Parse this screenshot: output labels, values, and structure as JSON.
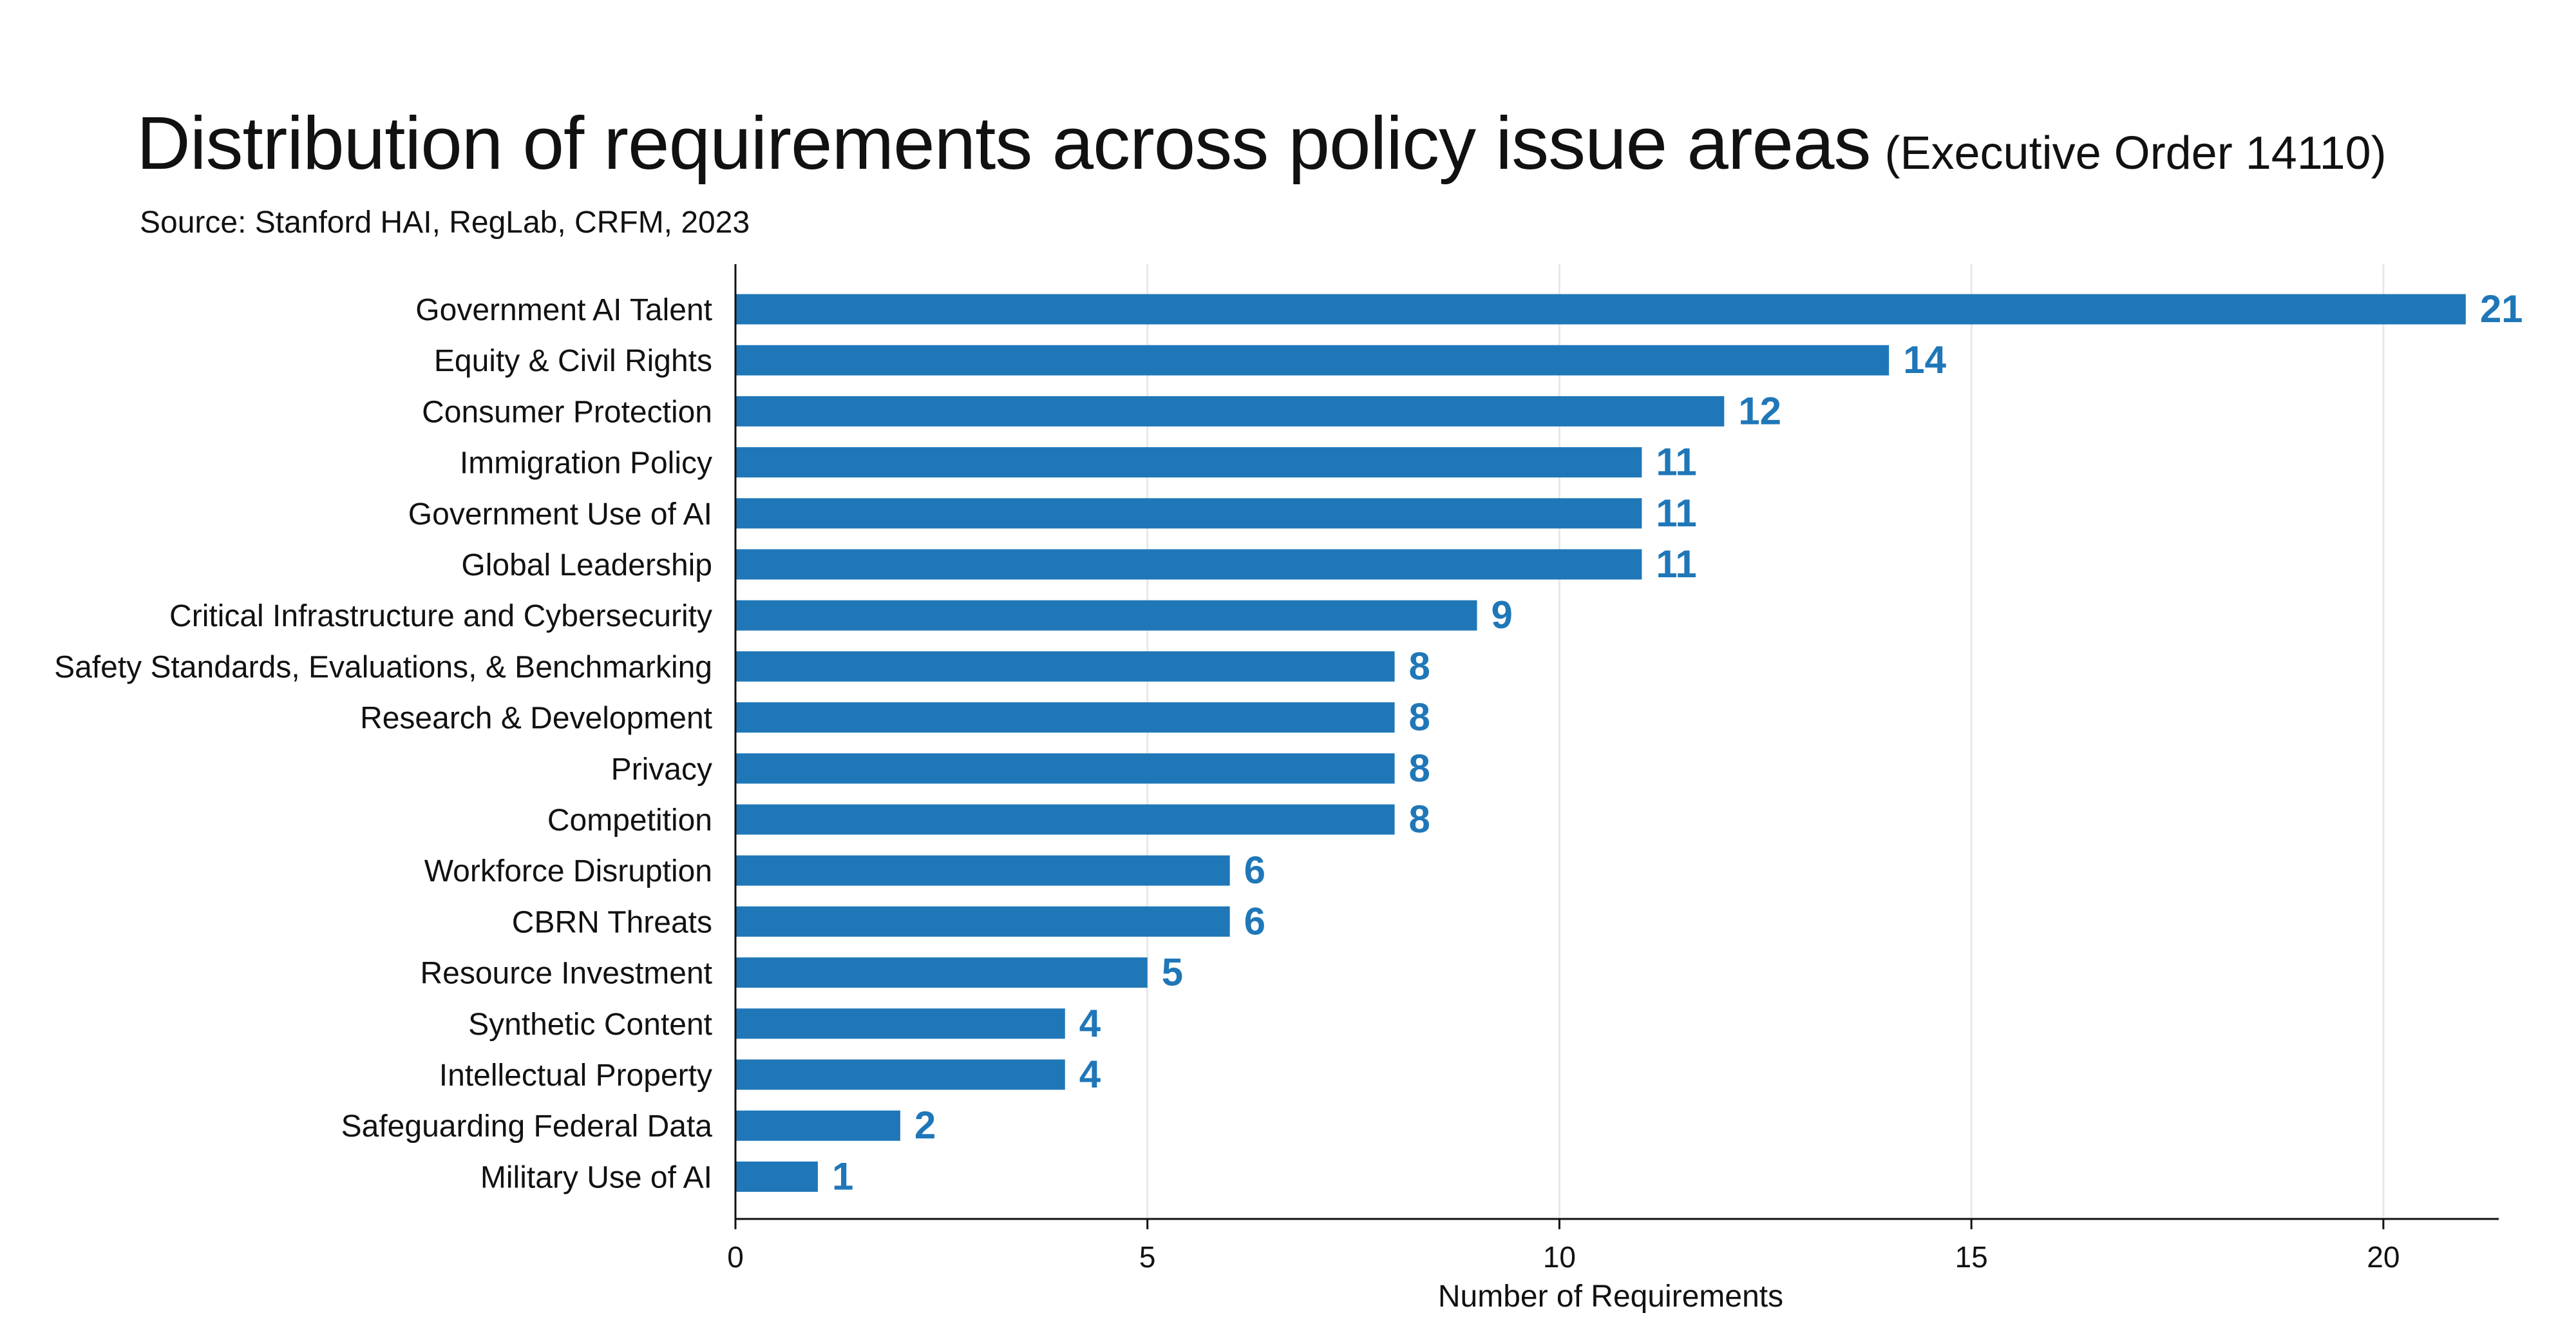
{
  "title": "Distribution of requirements across policy issue areas",
  "title_paren": "(Executive Order 14110)",
  "source": "Source: Stanford HAI, RegLab, CRFM, 2023",
  "chart_data": {
    "type": "bar",
    "orientation": "horizontal",
    "categories": [
      "Government AI Talent",
      "Equity & Civil Rights",
      "Consumer Protection",
      "Immigration Policy",
      "Government Use of AI",
      "Global Leadership",
      "Critical Infrastructure and Cybersecurity",
      "Safety Standards, Evaluations, & Benchmarking",
      "Research & Development",
      "Privacy",
      "Competition",
      "Workforce Disruption",
      "CBRN Threats",
      "Resource Investment",
      "Synthetic Content",
      "Intellectual Property",
      "Safeguarding Federal Data",
      "Military Use of AI"
    ],
    "values": [
      21,
      14,
      12,
      11,
      11,
      11,
      9,
      8,
      8,
      8,
      8,
      6,
      6,
      5,
      4,
      4,
      2,
      1
    ],
    "xlabel": "Number of Requirements",
    "xticks": [
      0,
      5,
      10,
      15,
      20
    ],
    "xlim": [
      0,
      21.4
    ],
    "grid": "vertical",
    "bar_color": "#1f77b8",
    "label_color": "#1f77b8"
  }
}
